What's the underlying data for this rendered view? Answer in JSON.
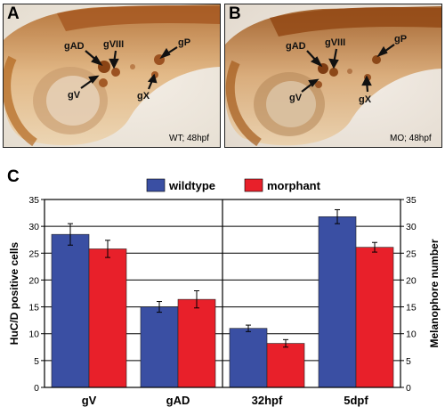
{
  "panels": {
    "a": {
      "letter": "A",
      "caption": "WT; 48hpf",
      "labels": {
        "gAD": "gAD",
        "gVIII": "gVIII",
        "gP": "gP",
        "gV": "gV",
        "gX": "gX"
      }
    },
    "b": {
      "letter": "B",
      "caption": "MO; 48hpf",
      "labels": {
        "gAD": "gAD",
        "gVIII": "gVIII",
        "gP": "gP",
        "gV": "gV",
        "gX": "gX"
      }
    },
    "c": {
      "letter": "C"
    }
  },
  "chart_data": {
    "type": "bar",
    "categories": [
      "gV",
      "gAD",
      "32hpf",
      "5dpf"
    ],
    "series": [
      {
        "name": "wildtype",
        "color": "#3a4fa3",
        "values": [
          28.5,
          15.0,
          11.0,
          31.8
        ],
        "errors": [
          2.0,
          1.0,
          0.6,
          1.3
        ]
      },
      {
        "name": "morphant",
        "color": "#e8202a",
        "values": [
          25.8,
          16.4,
          8.2,
          26.1
        ],
        "errors": [
          1.6,
          1.6,
          0.7,
          0.9
        ]
      }
    ],
    "ylabel": "HuC/D positive cells",
    "y2label": "Melanophore number",
    "ylim": [
      0,
      35
    ],
    "yticks": [
      0,
      5,
      10,
      15,
      20,
      25,
      30,
      35
    ],
    "grid": true,
    "legend": "top-center",
    "divider_after_category": 1
  }
}
